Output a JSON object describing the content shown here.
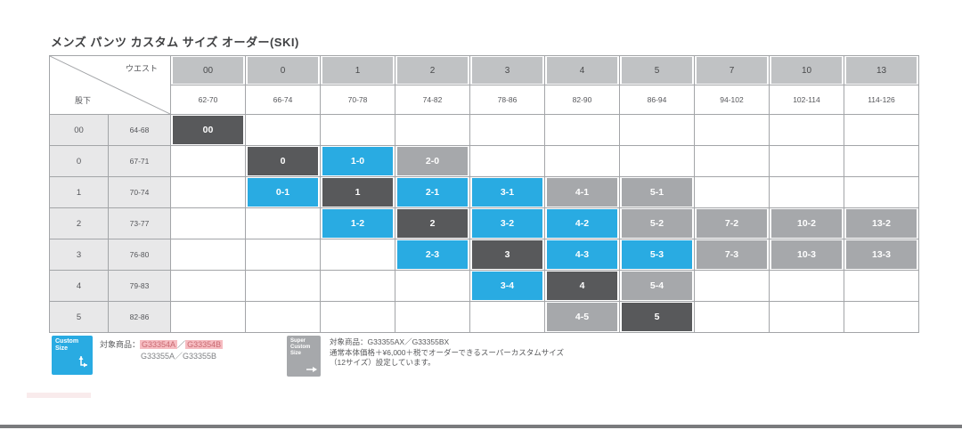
{
  "chart_data": {
    "type": "table",
    "title": "メンズ パンツ カスタム サイズ オーダー(SKI)",
    "axis": {
      "columns_label": "ウエスト",
      "rows_label": "股下"
    },
    "columns": [
      {
        "size": "00",
        "range": "62-70"
      },
      {
        "size": "0",
        "range": "66-74"
      },
      {
        "size": "1",
        "range": "70-78"
      },
      {
        "size": "2",
        "range": "74-82"
      },
      {
        "size": "3",
        "range": "78-86"
      },
      {
        "size": "4",
        "range": "82-90"
      },
      {
        "size": "5",
        "range": "86-94"
      },
      {
        "size": "7",
        "range": "94-102"
      },
      {
        "size": "10",
        "range": "102-114"
      },
      {
        "size": "13",
        "range": "114-126"
      }
    ],
    "rows": [
      {
        "size": "00",
        "range": "64-68",
        "cells": {
          "0": {
            "label": "00",
            "type": "standard"
          }
        }
      },
      {
        "size": "0",
        "range": "67-71",
        "cells": {
          "1": {
            "label": "0",
            "type": "standard"
          },
          "2": {
            "label": "1-0",
            "type": "custom"
          },
          "3": {
            "label": "2-0",
            "type": "super"
          }
        }
      },
      {
        "size": "1",
        "range": "70-74",
        "cells": {
          "1": {
            "label": "0-1",
            "type": "custom"
          },
          "2": {
            "label": "1",
            "type": "standard"
          },
          "3": {
            "label": "2-1",
            "type": "custom"
          },
          "4": {
            "label": "3-1",
            "type": "custom"
          },
          "5": {
            "label": "4-1",
            "type": "super"
          },
          "6": {
            "label": "5-1",
            "type": "super"
          }
        }
      },
      {
        "size": "2",
        "range": "73-77",
        "cells": {
          "2": {
            "label": "1-2",
            "type": "custom"
          },
          "3": {
            "label": "2",
            "type": "standard"
          },
          "4": {
            "label": "3-2",
            "type": "custom"
          },
          "5": {
            "label": "4-2",
            "type": "custom"
          },
          "6": {
            "label": "5-2",
            "type": "super"
          },
          "7": {
            "label": "7-2",
            "type": "super"
          },
          "8": {
            "label": "10-2",
            "type": "super"
          },
          "9": {
            "label": "13-2",
            "type": "super"
          }
        }
      },
      {
        "size": "3",
        "range": "76-80",
        "cells": {
          "3": {
            "label": "2-3",
            "type": "custom"
          },
          "4": {
            "label": "3",
            "type": "standard"
          },
          "5": {
            "label": "4-3",
            "type": "custom"
          },
          "6": {
            "label": "5-3",
            "type": "custom"
          },
          "7": {
            "label": "7-3",
            "type": "super"
          },
          "8": {
            "label": "10-3",
            "type": "super"
          },
          "9": {
            "label": "13-3",
            "type": "super"
          }
        }
      },
      {
        "size": "4",
        "range": "79-83",
        "cells": {
          "4": {
            "label": "3-4",
            "type": "custom"
          },
          "5": {
            "label": "4",
            "type": "standard"
          },
          "6": {
            "label": "5-4",
            "type": "super"
          }
        }
      },
      {
        "size": "5",
        "range": "82-86",
        "cells": {
          "5": {
            "label": "4-5",
            "type": "super"
          },
          "6": {
            "label": "5",
            "type": "standard"
          }
        }
      }
    ]
  },
  "legend": {
    "custom": {
      "badge": {
        "line1": "Custom",
        "line2": "Size"
      },
      "line1_prefix": "対象商品：",
      "code1": "G33354A",
      "separator": "／",
      "code2": "G33354B",
      "line2": "G33355A／G33355B"
    },
    "super": {
      "badge": {
        "line1": "Super",
        "line2": "Custom",
        "line3": "Size"
      },
      "line1": "対象商品：G33355AX／G33355BX",
      "line2": "通常本体価格＋¥6,000＋税でオーダーできるスーパーカスタムサイズ",
      "line3": "（12サイズ）設定しています。"
    }
  },
  "colors": {
    "custom_blue": "#29abe2",
    "standard_dark": "#58595b",
    "super_gray": "#a6a8ab",
    "header_gray": "#c0c2c4",
    "row_label_gray": "#e8e8e9",
    "grid_border": "#a3a5a8",
    "highlight_pink": "#f6bcc1"
  }
}
